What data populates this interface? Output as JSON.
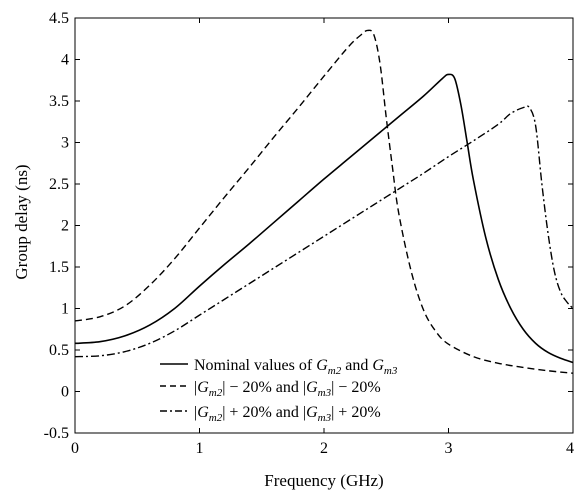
{
  "chart_data": {
    "type": "line",
    "title": "",
    "xlabel": "Frequency (GHz)",
    "ylabel": "Group delay (ns)",
    "xlim": [
      0,
      4
    ],
    "ylim": [
      -0.5,
      4.5
    ],
    "xticks": [
      "0",
      "1",
      "2",
      "3",
      "4"
    ],
    "yticks": [
      "-0.5",
      "0",
      "0.5",
      "1",
      "1.5",
      "2",
      "2.5",
      "3",
      "3.5",
      "4",
      "4.5"
    ],
    "grid": false,
    "legend_position": "bottom-center",
    "series": [
      {
        "name": "Nominal values of G_m2 and G_m3",
        "style": "solid",
        "color": "#000000",
        "x": [
          0,
          0.2,
          0.4,
          0.6,
          0.8,
          1.0,
          1.2,
          1.4,
          1.6,
          1.8,
          2.0,
          2.2,
          2.4,
          2.6,
          2.8,
          2.95,
          3.0,
          3.05,
          3.1,
          3.15,
          3.2,
          3.3,
          3.4,
          3.5,
          3.6,
          3.7,
          3.8,
          3.9,
          4.0
        ],
        "y": [
          0.58,
          0.6,
          0.67,
          0.8,
          1.0,
          1.27,
          1.53,
          1.78,
          2.04,
          2.3,
          2.56,
          2.81,
          3.06,
          3.31,
          3.56,
          3.77,
          3.82,
          3.77,
          3.45,
          3.0,
          2.55,
          1.85,
          1.35,
          1.0,
          0.75,
          0.58,
          0.47,
          0.4,
          0.35
        ]
      },
      {
        "name": "|G_m2| − 20% and |G_m3| − 20%",
        "style": "dashed",
        "color": "#000000",
        "x": [
          0,
          0.2,
          0.4,
          0.6,
          0.8,
          1.0,
          1.2,
          1.4,
          1.6,
          1.8,
          2.0,
          2.2,
          2.3,
          2.35,
          2.4,
          2.45,
          2.5,
          2.55,
          2.6,
          2.7,
          2.8,
          2.9,
          3.0,
          3.2,
          3.4,
          3.6,
          3.8,
          4.0
        ],
        "y": [
          0.85,
          0.9,
          1.03,
          1.28,
          1.6,
          1.97,
          2.34,
          2.7,
          3.07,
          3.43,
          3.8,
          4.16,
          4.3,
          4.35,
          4.3,
          3.95,
          3.3,
          2.7,
          2.15,
          1.45,
          0.98,
          0.72,
          0.57,
          0.42,
          0.34,
          0.29,
          0.25,
          0.22
        ]
      },
      {
        "name": "|G_m2| + 20% and |G_m3| + 20%",
        "style": "dash-dot",
        "color": "#000000",
        "x": [
          0,
          0.2,
          0.4,
          0.6,
          0.8,
          1.0,
          1.2,
          1.4,
          1.6,
          1.8,
          2.0,
          2.2,
          2.4,
          2.6,
          2.8,
          3.0,
          3.2,
          3.4,
          3.5,
          3.6,
          3.65,
          3.7,
          3.75,
          3.8,
          3.85,
          3.9,
          3.95,
          4.0
        ],
        "y": [
          0.42,
          0.43,
          0.48,
          0.58,
          0.73,
          0.92,
          1.11,
          1.3,
          1.49,
          1.68,
          1.87,
          2.06,
          2.25,
          2.44,
          2.63,
          2.83,
          3.02,
          3.22,
          3.35,
          3.42,
          3.42,
          3.2,
          2.5,
          1.9,
          1.45,
          1.2,
          1.08,
          1.0
        ]
      }
    ]
  },
  "legend": {
    "items": [
      {
        "prefix": "Nominal values of ",
        "g1": "G",
        "s1": "m2",
        "mid": " and ",
        "g2": "G",
        "s2": "m3",
        "suffix": ""
      },
      {
        "prefix": "|",
        "g1": "G",
        "s1": "m2",
        "mid": "| − 20% and |",
        "g2": "G",
        "s2": "m3",
        "suffix": "| − 20%"
      },
      {
        "prefix": "|",
        "g1": "G",
        "s1": "m2",
        "mid": "| + 20% and |",
        "g2": "G",
        "s2": "m3",
        "suffix": "| + 20%"
      }
    ]
  }
}
